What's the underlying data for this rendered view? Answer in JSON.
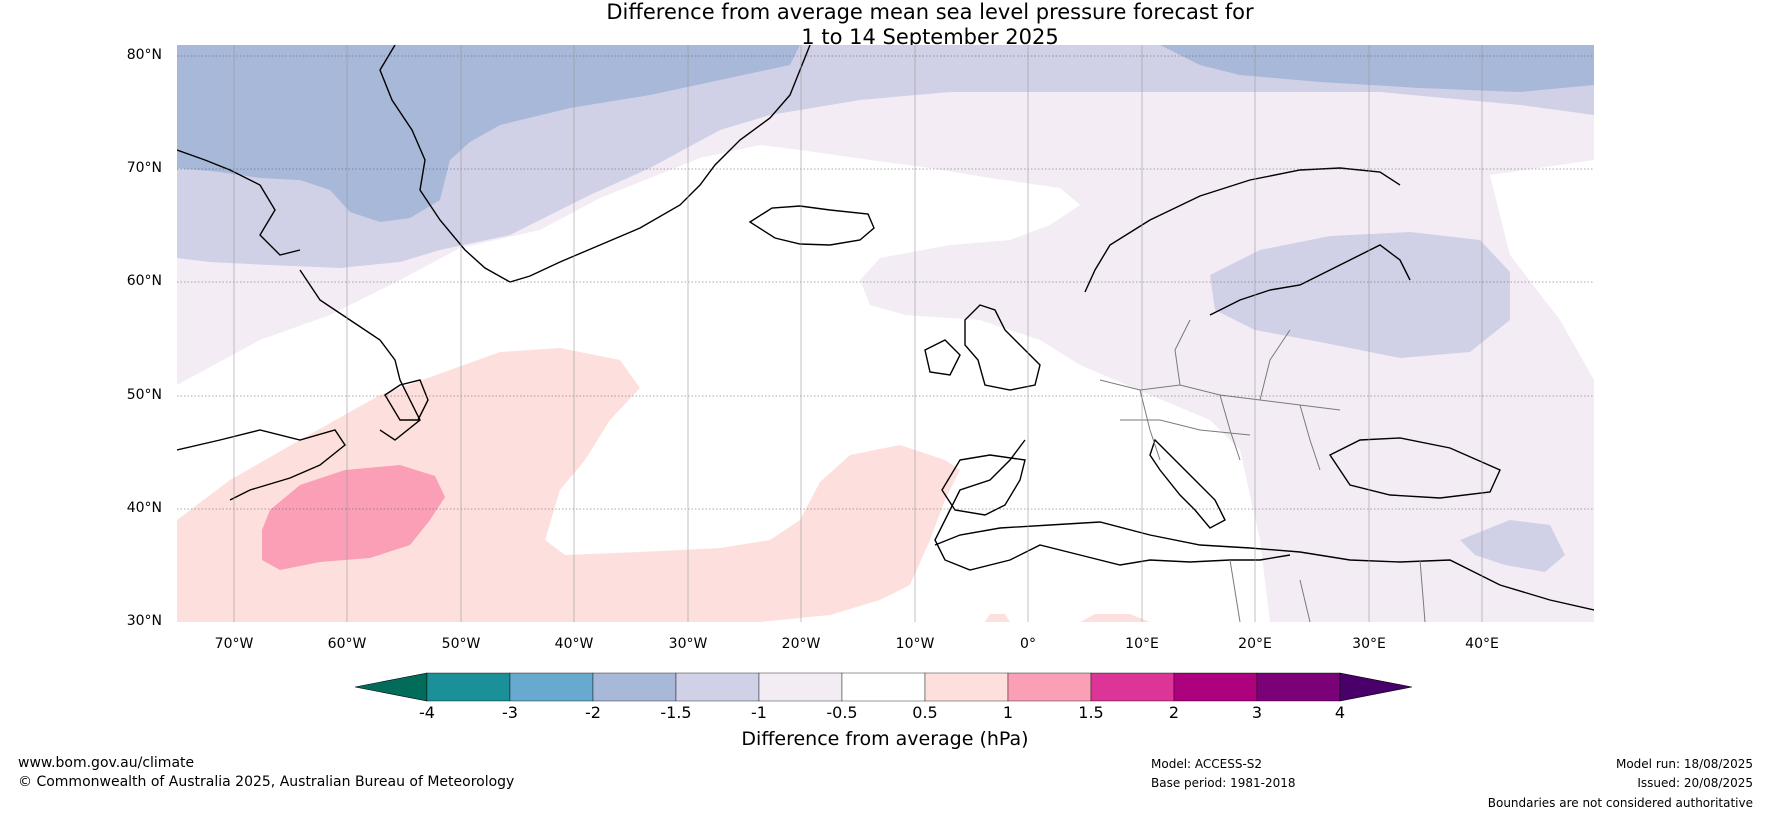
{
  "title": {
    "line1": "Difference from average mean sea level pressure forecast for",
    "line2": "1 to 14 September 2025"
  },
  "map": {
    "lat_labels": [
      "80°N",
      "70°N",
      "60°N",
      "50°N",
      "40°N",
      "30°N"
    ],
    "lon_labels": [
      "70°W",
      "60°W",
      "50°W",
      "40°W",
      "30°W",
      "20°W",
      "10°W",
      "0°",
      "10°E",
      "20°E",
      "30°E",
      "40°E"
    ],
    "extent": {
      "lon": [
        -75,
        50
      ],
      "lat": [
        30,
        81
      ]
    },
    "regions": [
      {
        "name": "greenland-davis-strait-low",
        "anomaly_range": "-2 to -1.5",
        "color": "#a7b8d9"
      },
      {
        "name": "arctic-band",
        "anomaly_range": "-1.5 to -1",
        "color": "#d0d1e6"
      },
      {
        "name": "north-atlantic-band",
        "anomaly_range": "-1 to -0.5",
        "color": "#f3ecf5"
      },
      {
        "name": "baltic-low",
        "anomaly_range": "-1.5 to -1",
        "color": "#d0d1e6"
      },
      {
        "name": "subtropical-atlantic-high",
        "anomaly_range": "0.5 to 1",
        "color": "#fde0dd"
      },
      {
        "name": "western-atlantic-high-core",
        "anomaly_range": "1 to 1.5",
        "color": "#fa9fb5"
      }
    ]
  },
  "colorbar": {
    "tick_labels": [
      "-4",
      "-3",
      "-2",
      "-1.5",
      "-1",
      "-0.5",
      "0.5",
      "1",
      "1.5",
      "2",
      "3",
      "4"
    ],
    "under_color": "#016c59",
    "over_color": "#49006a",
    "colors": [
      "#1c9099",
      "#67a9cf",
      "#a7b8d9",
      "#d0d1e6",
      "#f3ecf5",
      "#ffffff",
      "#fde0dd",
      "#fa9fb5",
      "#dd3497",
      "#ae017e",
      "#7a0177"
    ],
    "label": "Difference from average (hPa)"
  },
  "footer": {
    "website": "www.bom.gov.au/climate",
    "copyright": "© Commonwealth of Australia 2025, Australian Bureau of Meteorology",
    "model": "Model: ACCESS-S2",
    "base_period": "Base period: 1981-2018",
    "model_run": "Model run: 18/08/2025",
    "issued": "Issued: 20/08/2025",
    "disclaimer": "Boundaries are not considered authoritative"
  }
}
